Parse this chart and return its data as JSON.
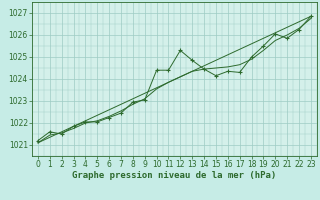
{
  "title": "Graphe pression niveau de la mer (hPa)",
  "bg_color": "#c6ece6",
  "plot_bg_color": "#d4f0ea",
  "grid_color": "#9eccc4",
  "line_color": "#2d6a2d",
  "xlim": [
    -0.5,
    23.5
  ],
  "ylim": [
    1020.6,
    1027.4
  ],
  "yticks": [
    1021,
    1022,
    1023,
    1024,
    1025,
    1026,
    1027
  ],
  "xticks": [
    0,
    1,
    2,
    3,
    4,
    5,
    6,
    7,
    8,
    9,
    10,
    11,
    12,
    13,
    14,
    15,
    16,
    17,
    18,
    19,
    20,
    21,
    22,
    23
  ],
  "series_main_x": [
    0,
    1,
    2,
    3,
    4,
    5,
    6,
    7,
    8,
    9,
    10,
    11,
    12,
    13,
    14,
    15,
    16,
    17,
    18,
    19,
    20,
    21,
    22,
    23
  ],
  "series_main_y": [
    1021.2,
    1021.6,
    1021.5,
    1021.85,
    1022.05,
    1022.05,
    1022.25,
    1022.45,
    1022.95,
    1023.05,
    1024.4,
    1024.4,
    1025.3,
    1024.85,
    1024.45,
    1024.15,
    1024.35,
    1024.3,
    1025.0,
    1025.5,
    1026.05,
    1025.85,
    1026.25,
    1026.85
  ],
  "series_smooth_x": [
    0,
    1,
    2,
    3,
    4,
    5,
    6,
    7,
    8,
    9,
    10,
    11,
    12,
    13,
    14,
    15,
    16,
    17,
    18,
    19,
    20,
    21,
    22,
    23
  ],
  "series_smooth_y": [
    1021.1,
    1021.45,
    1021.55,
    1021.75,
    1022.0,
    1022.1,
    1022.3,
    1022.55,
    1022.85,
    1023.1,
    1023.55,
    1023.85,
    1024.1,
    1024.35,
    1024.45,
    1024.5,
    1024.55,
    1024.65,
    1024.9,
    1025.3,
    1025.75,
    1026.0,
    1026.3,
    1026.75
  ],
  "series_trend_x": [
    0,
    23
  ],
  "series_trend_y": [
    1021.1,
    1026.85
  ],
  "tick_fontsize": 5.5,
  "title_fontsize": 6.5
}
